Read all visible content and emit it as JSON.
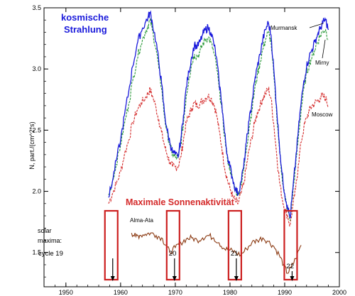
{
  "chart_data": {
    "type": "line",
    "title": "kosmische Strahlung",
    "subtitle": "Maximale Sonnenaktivität",
    "xlabel": "",
    "ylabel": "N, part./(cm^2*s)",
    "xlim": [
      1946,
      2000
    ],
    "ylim": [
      1.22,
      3.5
    ],
    "xticks": [
      1950,
      1960,
      1970,
      1980,
      1990,
      2000
    ],
    "yticks": [
      1.5,
      2.0,
      2.5,
      3.0,
      3.5
    ],
    "yticklabels": [
      "1.5",
      "2.0",
      "2.5",
      "3.0",
      "3.5"
    ],
    "grid": false,
    "legend": "inline labels",
    "series": [
      {
        "name": "Murmansk",
        "color": "#1a1adb",
        "x": [
          1957.8,
          1958.5,
          1959.2,
          1960.0,
          1960.7,
          1961.5,
          1962.2,
          1963.0,
          1963.7,
          1964.5,
          1965.0,
          1965.4,
          1965.8,
          1966.5,
          1967.0,
          1967.5,
          1968.0,
          1968.5,
          1969.0,
          1969.5,
          1970.0,
          1970.5,
          1971.0,
          1971.5,
          1972.0,
          1972.5,
          1973.0,
          1973.5,
          1974.0,
          1974.5,
          1975.0,
          1975.5,
          1976.0,
          1976.5,
          1977.0,
          1977.5,
          1978.0,
          1978.5,
          1979.0,
          1979.5,
          1980.0,
          1980.5,
          1981.0,
          1981.5,
          1982.0,
          1982.5,
          1983.0,
          1983.5,
          1984.0,
          1984.5,
          1985.0,
          1985.5,
          1986.0,
          1986.5,
          1987.0,
          1987.5,
          1988.0,
          1988.5,
          1989.0,
          1989.5,
          1990.0,
          1990.5,
          1991.0,
          1991.5,
          1992.0,
          1992.5,
          1993.0,
          1993.5,
          1994.0,
          1994.5,
          1995.0,
          1995.5,
          1996.0,
          1996.5,
          1997.0,
          1997.5,
          1998.0
        ],
        "y": [
          1.95,
          2.08,
          2.25,
          2.42,
          2.62,
          2.82,
          3.02,
          3.2,
          3.3,
          3.38,
          3.42,
          3.46,
          3.38,
          3.22,
          3.05,
          2.88,
          2.65,
          2.5,
          2.4,
          2.32,
          2.3,
          2.28,
          2.42,
          2.62,
          2.85,
          2.98,
          3.1,
          3.2,
          3.18,
          3.22,
          3.28,
          3.32,
          3.34,
          3.3,
          3.22,
          3.1,
          2.9,
          2.72,
          2.48,
          2.3,
          2.2,
          2.1,
          2.02,
          1.98,
          2.08,
          2.2,
          2.4,
          2.58,
          2.72,
          2.9,
          3.02,
          3.12,
          3.24,
          3.32,
          3.38,
          3.28,
          3.0,
          2.7,
          2.4,
          2.15,
          1.98,
          1.88,
          1.78,
          2.02,
          2.25,
          2.5,
          2.72,
          2.9,
          3.02,
          3.1,
          3.16,
          3.22,
          3.28,
          3.33,
          3.38,
          3.4,
          3.32
        ]
      },
      {
        "name": "Mirny",
        "color": "#2b9a3a",
        "x": [
          1957.8,
          1958.5,
          1959.2,
          1960.0,
          1960.7,
          1961.5,
          1962.2,
          1963.0,
          1963.7,
          1964.5,
          1965.0,
          1965.4,
          1965.8,
          1966.5,
          1967.0,
          1967.5,
          1968.0,
          1968.5,
          1969.0,
          1969.5,
          1970.0,
          1970.5,
          1971.0,
          1971.5,
          1972.0,
          1972.5,
          1973.0,
          1973.5,
          1974.0,
          1974.5,
          1975.0,
          1975.5,
          1976.0,
          1976.5,
          1977.0,
          1977.5,
          1978.0,
          1978.5,
          1979.0,
          1979.5,
          1980.0,
          1980.5,
          1981.0,
          1981.5,
          1982.0,
          1982.5,
          1983.0,
          1983.5,
          1984.0,
          1984.5,
          1985.0,
          1985.5,
          1986.0,
          1986.5,
          1987.0,
          1987.5,
          1988.0,
          1988.5,
          1989.0,
          1989.5,
          1990.0,
          1990.5,
          1991.0,
          1991.5,
          1992.0,
          1992.5,
          1993.0,
          1993.5,
          1994.0,
          1994.5,
          1995.0,
          1995.5,
          1996.0,
          1996.5,
          1997.0,
          1997.5,
          1998.0
        ],
        "y": [
          1.97,
          2.08,
          2.22,
          2.38,
          2.55,
          2.72,
          2.9,
          3.08,
          3.2,
          3.3,
          3.35,
          3.4,
          3.32,
          3.16,
          3.0,
          2.84,
          2.62,
          2.48,
          2.38,
          2.3,
          2.28,
          2.27,
          2.38,
          2.56,
          2.78,
          2.92,
          3.04,
          3.12,
          3.1,
          3.14,
          3.2,
          3.24,
          3.26,
          3.22,
          3.14,
          3.03,
          2.85,
          2.68,
          2.45,
          2.28,
          2.18,
          2.09,
          2.01,
          1.97,
          2.06,
          2.17,
          2.35,
          2.52,
          2.66,
          2.83,
          2.95,
          3.05,
          3.16,
          3.24,
          3.3,
          3.22,
          2.95,
          2.66,
          2.37,
          2.13,
          1.96,
          1.86,
          1.76,
          1.99,
          2.2,
          2.44,
          2.66,
          2.84,
          2.96,
          3.04,
          3.1,
          3.16,
          3.22,
          3.27,
          3.31,
          3.32,
          3.24
        ]
      },
      {
        "name": "Moscow",
        "color": "#d42a2a",
        "x": [
          1957.8,
          1958.5,
          1959.2,
          1960.0,
          1960.7,
          1961.5,
          1962.2,
          1963.0,
          1963.7,
          1964.5,
          1965.0,
          1965.4,
          1965.8,
          1966.5,
          1967.0,
          1967.5,
          1968.0,
          1968.5,
          1969.0,
          1969.5,
          1970.0,
          1970.5,
          1971.0,
          1971.5,
          1972.0,
          1972.5,
          1973.0,
          1973.5,
          1974.0,
          1974.5,
          1975.0,
          1975.5,
          1976.0,
          1976.5,
          1977.0,
          1977.5,
          1978.0,
          1978.5,
          1979.0,
          1979.5,
          1980.0,
          1980.5,
          1981.0,
          1981.5,
          1982.0,
          1982.5,
          1983.0,
          1983.5,
          1984.0,
          1984.5,
          1985.0,
          1985.5,
          1986.0,
          1986.5,
          1987.0,
          1987.5,
          1988.0,
          1988.5,
          1989.0,
          1989.5,
          1990.0,
          1990.5,
          1991.0,
          1991.5,
          1992.0,
          1992.5,
          1993.0,
          1993.5,
          1994.0,
          1994.5,
          1995.0,
          1995.5,
          1996.0,
          1996.5,
          1997.0,
          1997.5,
          1998.0
        ],
        "y": [
          1.9,
          1.98,
          2.06,
          2.16,
          2.3,
          2.42,
          2.56,
          2.66,
          2.72,
          2.76,
          2.8,
          2.83,
          2.78,
          2.68,
          2.58,
          2.48,
          2.38,
          2.3,
          2.24,
          2.2,
          2.2,
          2.2,
          2.28,
          2.42,
          2.56,
          2.62,
          2.68,
          2.72,
          2.7,
          2.72,
          2.74,
          2.76,
          2.78,
          2.76,
          2.72,
          2.64,
          2.5,
          2.36,
          2.2,
          2.1,
          2.02,
          1.96,
          1.92,
          1.9,
          1.98,
          2.06,
          2.2,
          2.34,
          2.44,
          2.56,
          2.64,
          2.7,
          2.76,
          2.8,
          2.84,
          2.76,
          2.55,
          2.32,
          2.1,
          1.95,
          1.86,
          1.8,
          1.72,
          1.88,
          2.02,
          2.22,
          2.4,
          2.52,
          2.6,
          2.66,
          2.7,
          2.72,
          2.74,
          2.76,
          2.78,
          2.76,
          2.7
        ]
      },
      {
        "name": "Alma-Ata",
        "color": "#8b3a12",
        "x": [
          1962.0,
          1962.8,
          1963.5,
          1964.5,
          1965.5,
          1966.5,
          1967.5,
          1968.3,
          1969.0,
          1970.0,
          1971.0,
          1972.0,
          1973.0,
          1974.0,
          1975.0,
          1976.0,
          1977.0,
          1978.0,
          1979.0,
          1980.0,
          1981.0,
          1982.0,
          1983.0,
          1984.0,
          1985.0,
          1986.0,
          1987.0,
          1988.0,
          1989.0,
          1989.8,
          1990.5,
          1991.2,
          1992.0,
          1993.0
        ],
        "y": [
          1.66,
          1.63,
          1.64,
          1.65,
          1.66,
          1.64,
          1.62,
          1.56,
          1.5,
          1.54,
          1.58,
          1.61,
          1.62,
          1.6,
          1.62,
          1.64,
          1.62,
          1.58,
          1.53,
          1.52,
          1.5,
          1.48,
          1.53,
          1.58,
          1.6,
          1.62,
          1.59,
          1.55,
          1.48,
          1.4,
          1.33,
          1.38,
          1.45,
          1.56
        ]
      }
    ],
    "series_labels": {
      "Murmansk": "Murmansk",
      "Mirny": "Mirny",
      "Moscow": "Moscow",
      "Alma-Ata": "Alma-Ata"
    },
    "annotations": {
      "solar_maxima_label_1": "solar",
      "solar_maxima_label_2": "maxima:",
      "cycles": [
        {
          "label": "cycle 19",
          "x": 1958.3
        },
        {
          "label": "20",
          "x": 1969.6
        },
        {
          "label": "21",
          "x": 1980.9
        },
        {
          "label": "22",
          "x": 1991.1
        }
      ]
    }
  },
  "colors": {
    "title": "#1a1adb",
    "subtitle": "#d42a2a",
    "boxes": "#cc1f1f",
    "axis": "#000000"
  }
}
